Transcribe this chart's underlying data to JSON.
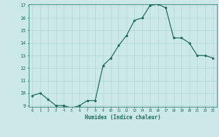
{
  "x": [
    0,
    1,
    2,
    3,
    4,
    5,
    6,
    7,
    8,
    9,
    10,
    11,
    12,
    13,
    14,
    15,
    16,
    17,
    18,
    19,
    20,
    21,
    22,
    23
  ],
  "y": [
    9.8,
    10.0,
    9.5,
    9.0,
    9.0,
    8.8,
    9.0,
    9.4,
    9.4,
    12.2,
    12.8,
    13.8,
    14.6,
    15.8,
    16.0,
    17.0,
    17.1,
    16.8,
    14.4,
    14.4,
    14.0,
    13.0,
    13.0,
    12.8
  ],
  "xlabel": "Humidex (Indice chaleur)",
  "ylim": [
    9,
    17
  ],
  "xlim": [
    -0.5,
    23.5
  ],
  "yticks": [
    9,
    10,
    11,
    12,
    13,
    14,
    15,
    16,
    17
  ],
  "xticks": [
    0,
    1,
    2,
    3,
    4,
    5,
    6,
    7,
    8,
    9,
    10,
    11,
    12,
    13,
    14,
    15,
    16,
    17,
    18,
    19,
    20,
    21,
    22,
    23
  ],
  "line_color": "#1a6b5a",
  "marker_color": "#1a6b5a",
  "bg_color": "#cce8e8",
  "grid_color": "#aed4d4",
  "xlabel_color": "#1a6b5a",
  "tick_color": "#1a6b5a",
  "font_family": "monospace"
}
